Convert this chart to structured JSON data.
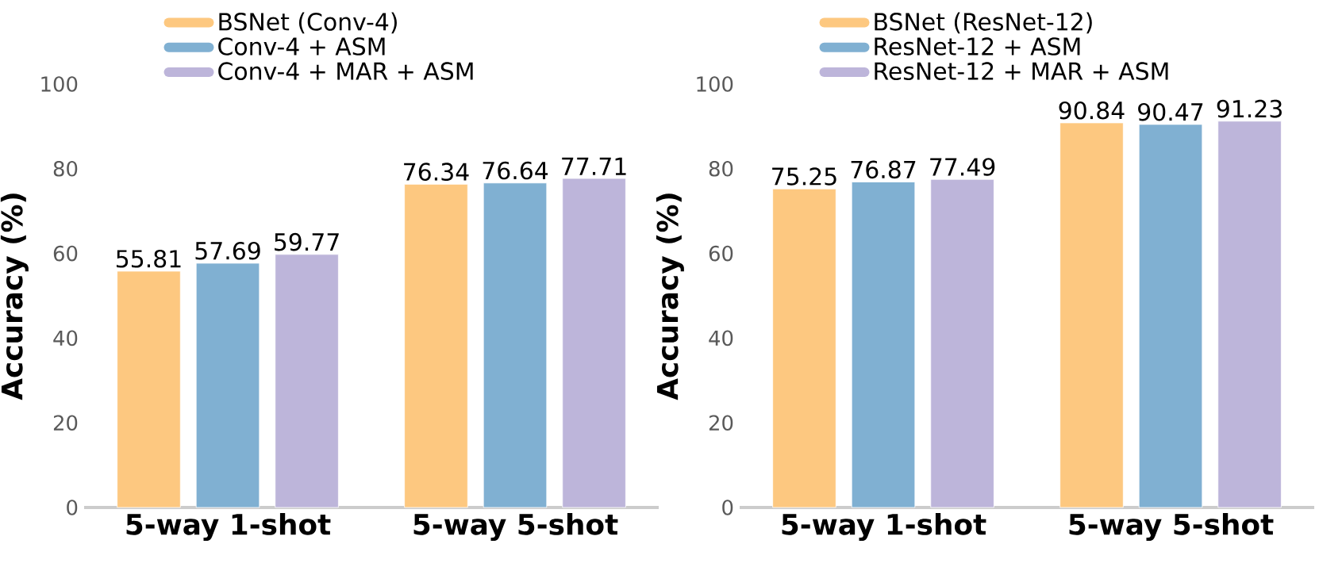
{
  "chart_data": [
    {
      "type": "bar",
      "ylabel": "Accuracy (%)",
      "categories": [
        "5-way 1-shot",
        "5-way 5-shot"
      ],
      "ylim": [
        0,
        100
      ],
      "yticks": [
        0,
        20,
        40,
        60,
        80,
        100
      ],
      "data_labels": true,
      "legend": "top",
      "series": [
        {
          "name": "BSNet (Conv-4)",
          "color": "#fdc880",
          "values": [
            55.81,
            76.34
          ]
        },
        {
          "name": "Conv-4 + ASM",
          "color": "#80b0d2",
          "values": [
            57.69,
            76.64
          ]
        },
        {
          "name": "Conv-4 + MAR + ASM",
          "color": "#bdb5da",
          "values": [
            59.77,
            77.71
          ]
        }
      ]
    },
    {
      "type": "bar",
      "ylabel": "Accuracy (%)",
      "categories": [
        "5-way 1-shot",
        "5-way 5-shot"
      ],
      "ylim": [
        0,
        100
      ],
      "yticks": [
        0,
        20,
        40,
        60,
        80,
        100
      ],
      "data_labels": true,
      "legend": "top",
      "series": [
        {
          "name": "BSNet (ResNet-12)",
          "color": "#fdc880",
          "values": [
            75.25,
            90.84
          ]
        },
        {
          "name": "ResNet-12 + ASM",
          "color": "#80b0d2",
          "values": [
            76.87,
            90.47
          ]
        },
        {
          "name": "ResNet-12 + MAR + ASM",
          "color": "#bdb5da",
          "values": [
            77.49,
            91.23
          ]
        }
      ]
    }
  ]
}
